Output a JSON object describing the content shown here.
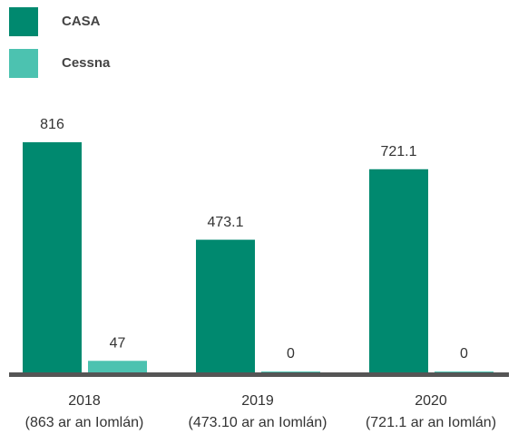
{
  "chart_data": {
    "type": "bar",
    "categories": [
      "2018",
      "2019",
      "2020"
    ],
    "category_totals": [
      "(863 ar an Iomlán)",
      "(473.10 ar an Iomlán)",
      "(721.1 ar an Iomlán)"
    ],
    "series": [
      {
        "name": "CASA",
        "color": "#00896f",
        "values": [
          816,
          473.1,
          721.1
        ]
      },
      {
        "name": "Cessna",
        "color": "#4cc2b0",
        "values": [
          47,
          0,
          0
        ]
      }
    ]
  }
}
